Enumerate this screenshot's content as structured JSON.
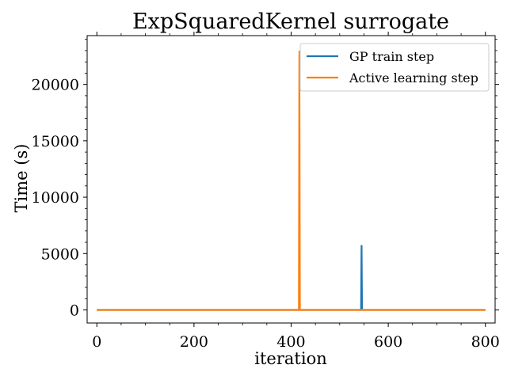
{
  "chart_data": {
    "type": "line",
    "title": "ExpSquaredKernel surrogate",
    "xlabel": "iteration",
    "ylabel": "Time (s)",
    "xlim": [
      -20,
      820
    ],
    "ylim": [
      -1160,
      24330
    ],
    "xticks": [
      0,
      200,
      400,
      600,
      800
    ],
    "yticks": [
      0,
      5000,
      10000,
      15000,
      20000
    ],
    "legend_position": "top-right",
    "series": [
      {
        "name": "GP train step",
        "color": "#1f77b4",
        "x": [
          0,
          544,
          545,
          546,
          800
        ],
        "y": [
          0,
          0,
          5750,
          0,
          0
        ]
      },
      {
        "name": "Active learning step",
        "color": "#ff7f0e",
        "x": [
          0,
          416,
          417,
          418,
          800
        ],
        "y": [
          0,
          0,
          23000,
          0,
          0
        ]
      }
    ]
  }
}
